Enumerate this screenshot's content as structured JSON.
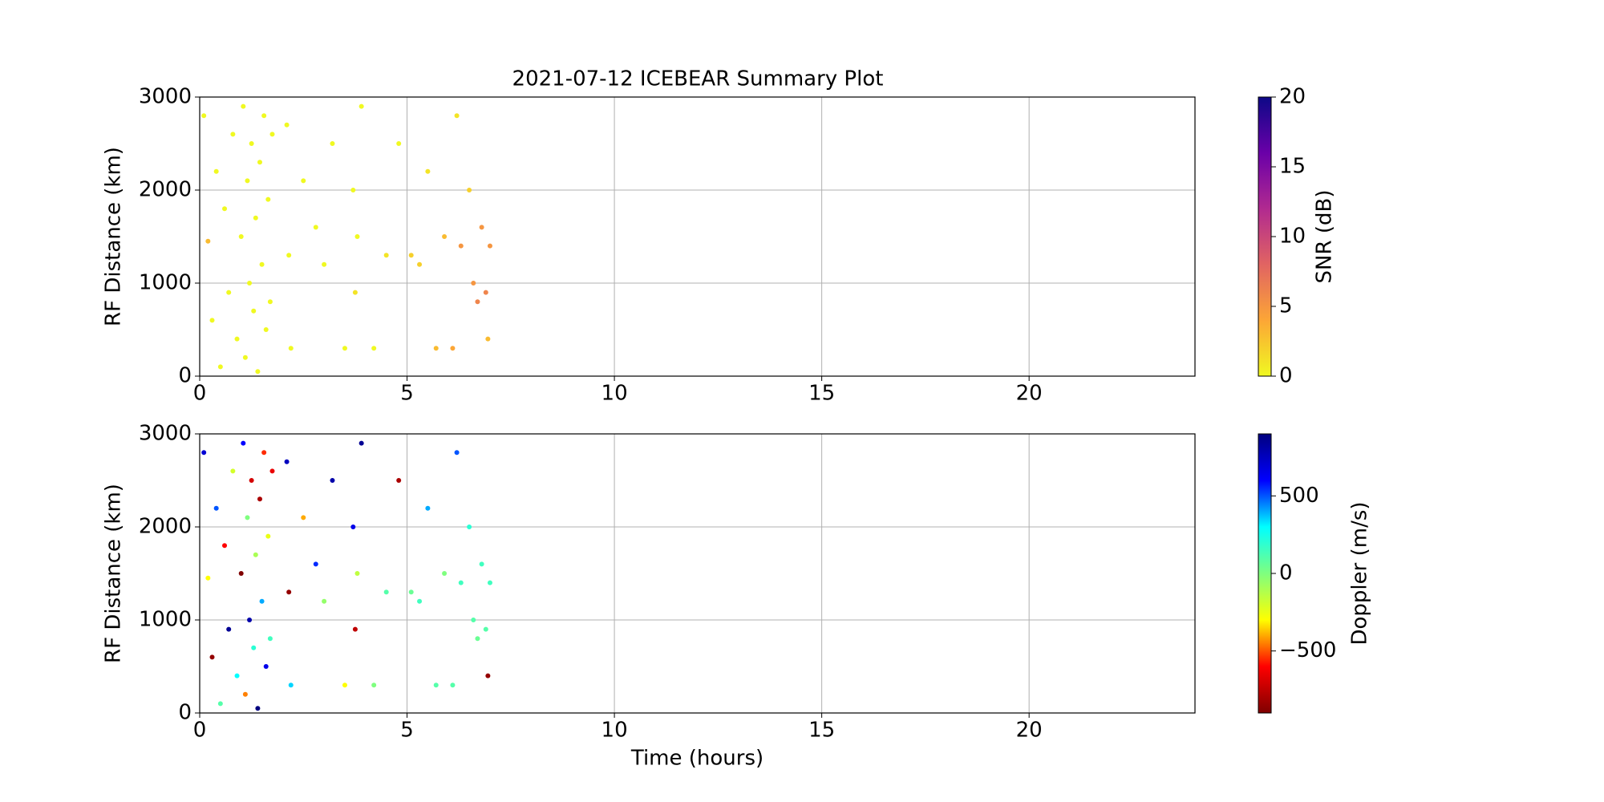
{
  "chart_data": [
    {
      "type": "scatter",
      "title": "2021-07-12 ICEBEAR Summary Plot",
      "ylabel": "RF Distance (km)",
      "x": [
        0.1,
        0.2,
        0.3,
        0.4,
        0.5,
        0.6,
        0.7,
        0.8,
        0.9,
        1.0,
        1.05,
        1.1,
        1.15,
        1.2,
        1.25,
        1.3,
        1.35,
        1.4,
        1.45,
        1.5,
        1.55,
        1.6,
        1.65,
        1.7,
        1.75,
        2.1,
        2.15,
        2.2,
        2.5,
        2.8,
        3.0,
        3.2,
        3.5,
        3.7,
        3.75,
        3.8,
        3.9,
        4.2,
        4.5,
        4.8,
        5.1,
        5.3,
        5.5,
        5.7,
        5.9,
        6.1,
        6.2,
        6.3,
        6.5,
        6.6,
        6.7,
        6.8,
        6.9,
        7.0,
        6.95
      ],
      "values": [
        2800,
        1450,
        600,
        2200,
        100,
        1800,
        900,
        2600,
        400,
        1500,
        2900,
        200,
        2100,
        1000,
        2500,
        700,
        1700,
        50,
        2300,
        1200,
        2800,
        500,
        1900,
        800,
        2600,
        2700,
        1300,
        300,
        2100,
        1600,
        1200,
        2500,
        300,
        2000,
        900,
        1500,
        2900,
        300,
        1300,
        2500,
        1300,
        1200,
        2200,
        300,
        1500,
        300,
        2800,
        1400,
        2000,
        1000,
        800,
        1600,
        900,
        1400,
        400
      ],
      "color_values": [
        0,
        3,
        0,
        0,
        0,
        0,
        0,
        0,
        0,
        0,
        0,
        0,
        0,
        0,
        0,
        0,
        0,
        0,
        0,
        0,
        0,
        0,
        0,
        0,
        0,
        0,
        0,
        0,
        0,
        0,
        0,
        0,
        0,
        0,
        1,
        0,
        0,
        0,
        1,
        0,
        2,
        2,
        1,
        3,
        3,
        4,
        1,
        5,
        2,
        5,
        6,
        5,
        6,
        5,
        3
      ],
      "xlim": [
        0,
        24
      ],
      "ylim": [
        0,
        3000
      ],
      "xticks": [
        0,
        5,
        10,
        15,
        20
      ],
      "yticks": [
        0,
        1000,
        2000,
        3000
      ],
      "grid": true,
      "colorbar": {
        "label": "SNR (dB)",
        "lim": [
          0,
          20
        ],
        "ticks": [
          0,
          5,
          10,
          15,
          20
        ],
        "colormap": [
          "#f0f921",
          "#fca636",
          "#e16462",
          "#b12a90",
          "#6a00a8",
          "#0d0887"
        ]
      }
    },
    {
      "type": "scatter",
      "ylabel": "RF Distance (km)",
      "xlabel": "Time (hours)",
      "x": [
        0.1,
        0.2,
        0.3,
        0.4,
        0.5,
        0.6,
        0.7,
        0.8,
        0.9,
        1.0,
        1.05,
        1.1,
        1.15,
        1.2,
        1.25,
        1.3,
        1.35,
        1.4,
        1.45,
        1.5,
        1.55,
        1.6,
        1.65,
        1.7,
        1.75,
        2.1,
        2.15,
        2.2,
        2.5,
        2.8,
        3.0,
        3.2,
        3.5,
        3.7,
        3.75,
        3.8,
        3.9,
        4.2,
        4.5,
        4.8,
        5.1,
        5.3,
        5.5,
        5.7,
        5.9,
        6.1,
        6.2,
        6.3,
        6.5,
        6.6,
        6.7,
        6.8,
        6.9,
        7.0,
        6.95
      ],
      "values": [
        2800,
        1450,
        600,
        2200,
        100,
        1800,
        900,
        2600,
        400,
        1500,
        2900,
        200,
        2100,
        1000,
        2500,
        700,
        1700,
        50,
        2300,
        1200,
        2800,
        500,
        1900,
        800,
        2600,
        2700,
        1300,
        300,
        2100,
        1600,
        1200,
        2500,
        300,
        2000,
        900,
        1500,
        2900,
        300,
        1300,
        2500,
        1300,
        1200,
        2200,
        300,
        1500,
        300,
        2800,
        1400,
        2000,
        1000,
        800,
        1600,
        900,
        1400,
        400
      ],
      "color_values": [
        700,
        -300,
        -850,
        500,
        100,
        -600,
        850,
        -200,
        300,
        -900,
        600,
        -450,
        0,
        800,
        -700,
        200,
        -100,
        900,
        -800,
        400,
        -550,
        650,
        -250,
        150,
        -650,
        750,
        -850,
        350,
        -400,
        550,
        -50,
        800,
        -300,
        650,
        -750,
        -150,
        850,
        0,
        100,
        -800,
        50,
        150,
        400,
        100,
        0,
        100,
        500,
        150,
        200,
        100,
        50,
        150,
        100,
        150,
        -850
      ],
      "xlim": [
        0,
        24
      ],
      "ylim": [
        0,
        3000
      ],
      "xticks": [
        0,
        5,
        10,
        15,
        20
      ],
      "yticks": [
        0,
        1000,
        2000,
        3000
      ],
      "grid": true,
      "colorbar": {
        "label": "Doppler (m/s)",
        "lim": [
          -900,
          900
        ],
        "ticks": [
          {
            "value": -500,
            "label": "−500"
          },
          0,
          500
        ],
        "colormap": [
          "#7f0000",
          "#ff0000",
          "#ffff00",
          "#7fff7f",
          "#00ffff",
          "#0000ff",
          "#00007f"
        ]
      }
    }
  ]
}
